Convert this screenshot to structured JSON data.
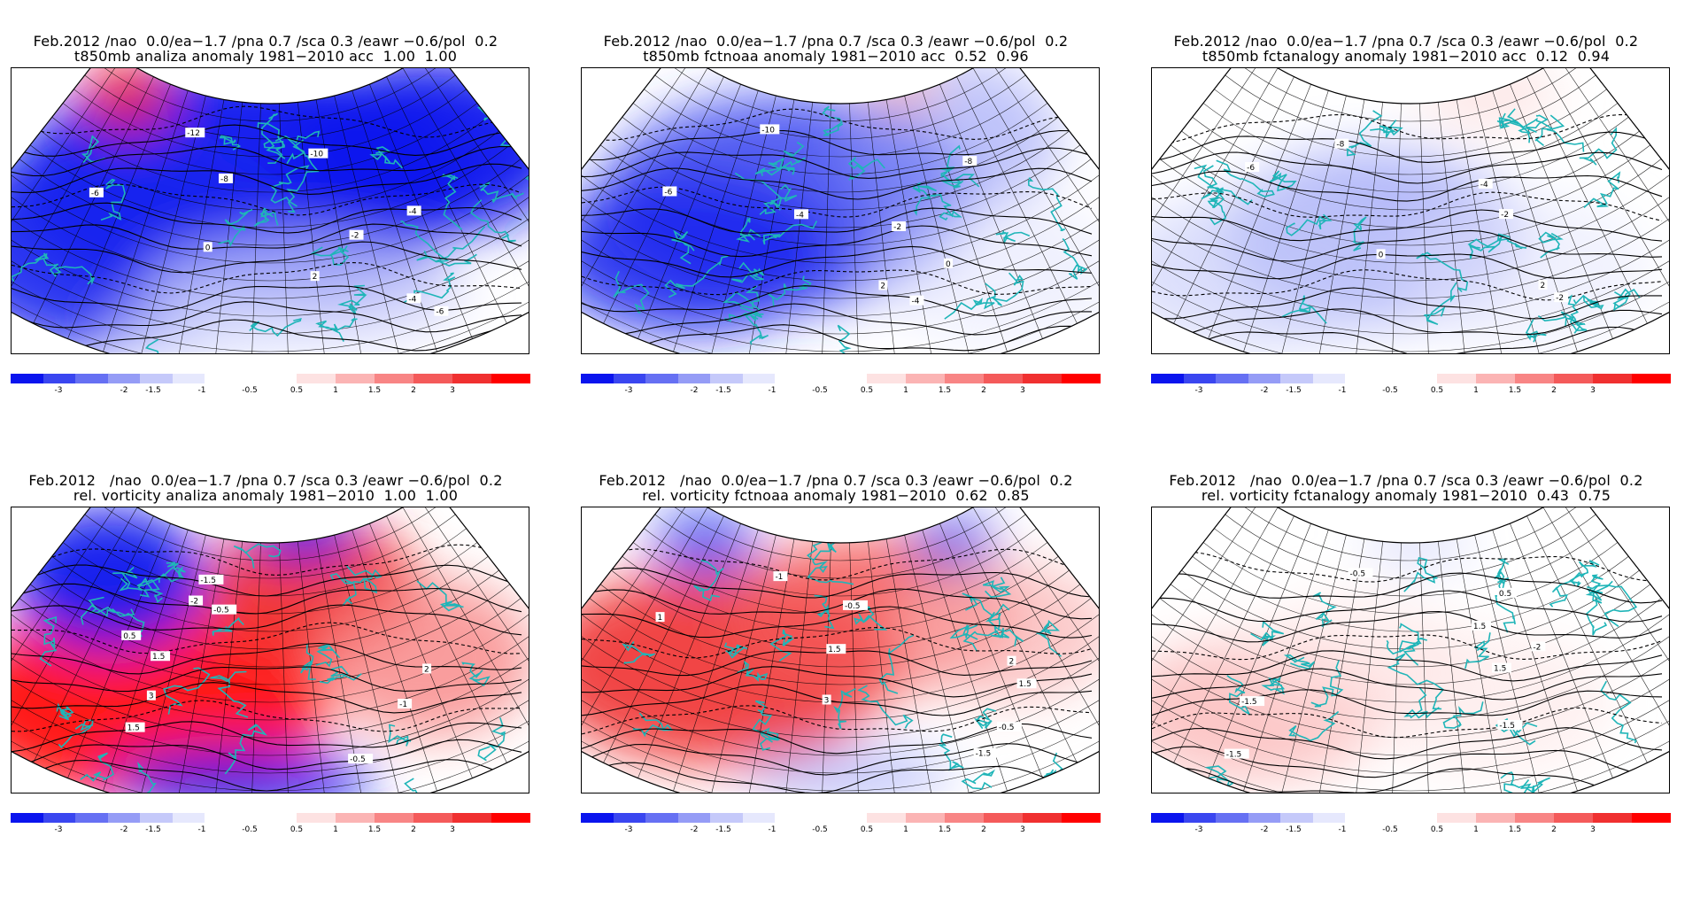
{
  "legend_labels": [
    "-3",
    "-2",
    "-1.5",
    "-1",
    "-0.5",
    "0.5",
    "1",
    "1.5",
    "2",
    "3"
  ],
  "legend_colors": {
    "neg": [
      "#0a14ee",
      "#3a46f0",
      "#6670f3",
      "#959cf6",
      "#c5c9fa",
      "#e6e8fd"
    ],
    "pos": [
      "#fde2e2",
      "#fbb4b4",
      "#f88585",
      "#f45a5a",
      "#f03030",
      "#ff0000"
    ]
  },
  "panels": [
    {
      "title_line1": "Feb.2012 /nao  0.0/ea−1.7 /pna 0.7 /sca 0.3 /eawr −0.6/pol  0.2",
      "title_line2": "t850mb analiza anomaly 1981−2010 acc  1.00  1.00",
      "variable": "t850mb",
      "source": "analiza",
      "acc": [
        1.0,
        1.0
      ],
      "contour_labels": [
        "-12",
        "-10",
        "-8",
        "-6",
        "-4",
        "-2",
        "0",
        "2",
        "-4",
        "-6"
      ]
    },
    {
      "title_line1": "Feb.2012 /nao  0.0/ea−1.7 /pna 0.7 /sca 0.3 /eawr −0.6/pol  0.2",
      "title_line2": "t850mb fctnoaa anomaly 1981−2010 acc  0.52  0.96",
      "variable": "t850mb",
      "source": "fctnoaa",
      "acc": [
        0.52,
        0.96
      ],
      "contour_labels": [
        "-10",
        "-8",
        "-6",
        "-4",
        "-2",
        "0",
        "2",
        "-4"
      ]
    },
    {
      "title_line1": "Feb.2012 /nao  0.0/ea−1.7 /pna 0.7 /sca 0.3 /eawr −0.6/pol  0.2",
      "title_line2": "t850mb fctanalogy anomaly 1981−2010 acc  0.12  0.94",
      "variable": "t850mb",
      "source": "fctanalogy",
      "acc": [
        0.12,
        0.94
      ],
      "contour_labels": [
        "-8",
        "-6",
        "-4",
        "-2",
        "0",
        "2",
        "-2"
      ]
    },
    {
      "title_line1": "Feb.2012   /nao  0.0/ea−1.7 /pna 0.7 /sca 0.3 /eawr −0.6/pol  0.2",
      "title_line2": "rel. vorticity analiza anomaly 1981−2010  1.00  1.00",
      "variable": "rel. vorticity",
      "source": "analiza",
      "acc": [
        1.0,
        1.0
      ],
      "contour_labels": [
        "-1.5",
        "-2",
        "-0.5",
        "0.5",
        "1.5",
        "2",
        "3",
        "-1",
        "1.5",
        "-0.5"
      ]
    },
    {
      "title_line1": "Feb.2012   /nao  0.0/ea−1.7 /pna 0.7 /sca 0.3 /eawr −0.6/pol  0.2",
      "title_line2": "rel. vorticity fctnoaa anomaly 1981−2010  0.62  0.85",
      "variable": "rel. vorticity",
      "source": "fctnoaa",
      "acc": [
        0.62,
        0.85
      ],
      "contour_labels": [
        "-1",
        "-0.5",
        "1",
        "1.5",
        "2",
        "1.5",
        "3",
        "-0.5",
        "-1.5"
      ]
    },
    {
      "title_line1": "Feb.2012   /nao  0.0/ea−1.7 /pna 0.7 /sca 0.3 /eawr −0.6/pol  0.2",
      "title_line2": "rel. vorticity fctanalogy anomaly 1981−2010  0.43  0.75",
      "variable": "rel. vorticity",
      "source": "fctanalogy",
      "acc": [
        0.43,
        0.75
      ],
      "contour_labels": [
        "-0.5",
        "0.5",
        "1.5",
        "-2",
        "1.5",
        "-1.5",
        "-1.5",
        "-1.5"
      ]
    }
  ]
}
